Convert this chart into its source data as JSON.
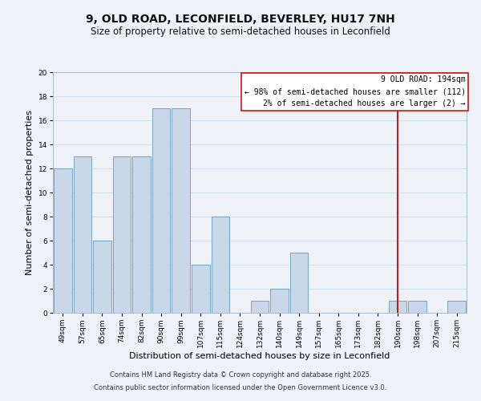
{
  "title": "9, OLD ROAD, LECONFIELD, BEVERLEY, HU17 7NH",
  "subtitle": "Size of property relative to semi-detached houses in Leconfield",
  "xlabel": "Distribution of semi-detached houses by size in Leconfield",
  "ylabel": "Number of semi-detached properties",
  "bin_labels": [
    "49sqm",
    "57sqm",
    "65sqm",
    "74sqm",
    "82sqm",
    "90sqm",
    "99sqm",
    "107sqm",
    "115sqm",
    "124sqm",
    "132sqm",
    "140sqm",
    "149sqm",
    "157sqm",
    "165sqm",
    "173sqm",
    "182sqm",
    "190sqm",
    "198sqm",
    "207sqm",
    "215sqm"
  ],
  "bar_heights": [
    12,
    13,
    6,
    13,
    13,
    17,
    17,
    4,
    8,
    0,
    1,
    2,
    5,
    0,
    0,
    0,
    0,
    1,
    1,
    0,
    1
  ],
  "bar_color": "#c8d8e8",
  "bar_edgecolor": "#6699bb",
  "grid_color": "#d0dde8",
  "background_color": "#eef2f7",
  "vline_x_index": 17,
  "vline_color": "#cc0000",
  "annotation_title": "9 OLD ROAD: 194sqm",
  "annotation_line1": "← 98% of semi-detached houses are smaller (112)",
  "annotation_line2": "2% of semi-detached houses are larger (2) →",
  "annotation_box_edgecolor": "#cc0000",
  "footer_line1": "Contains HM Land Registry data © Crown copyright and database right 2025.",
  "footer_line2": "Contains public sector information licensed under the Open Government Licence v3.0.",
  "ylim": [
    0,
    20
  ],
  "yticks": [
    0,
    2,
    4,
    6,
    8,
    10,
    12,
    14,
    16,
    18,
    20
  ],
  "title_fontsize": 10,
  "subtitle_fontsize": 8.5,
  "axis_label_fontsize": 8,
  "tick_fontsize": 6.5,
  "annotation_fontsize": 7,
  "footer_fontsize": 6
}
